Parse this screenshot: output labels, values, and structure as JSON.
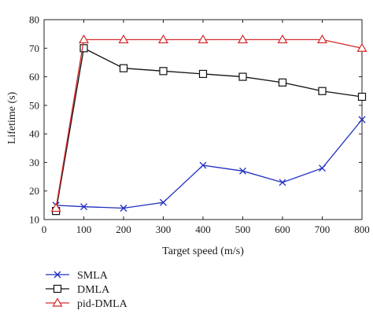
{
  "chart_data": {
    "type": "line",
    "title": "",
    "xlabel": "Target speed (m/s)",
    "ylabel": "Lifetime (s)",
    "xlim": [
      0,
      800
    ],
    "ylim": [
      10,
      80
    ],
    "xticks": [
      "0",
      "100",
      "200",
      "300",
      "400",
      "500",
      "600",
      "700",
      "800"
    ],
    "yticks": [
      "10",
      "20",
      "30",
      "40",
      "50",
      "60",
      "70",
      "80"
    ],
    "grid": false,
    "legend_position": "below plot, left",
    "series": [
      {
        "name": "SMLA",
        "color": "#1f2fbf",
        "marker": "x",
        "x": [
          30,
          100,
          200,
          300,
          400,
          500,
          600,
          700,
          800
        ],
        "y": [
          15,
          14.5,
          14,
          16,
          29,
          27,
          23,
          28,
          45
        ]
      },
      {
        "name": "DMLA",
        "color": "#111111",
        "marker": "square",
        "x": [
          30,
          100,
          200,
          300,
          400,
          500,
          600,
          700,
          800
        ],
        "y": [
          13,
          70,
          63,
          62,
          61,
          60,
          58,
          55,
          53
        ]
      },
      {
        "name": "pid-DMLA",
        "color": "#d42a2a",
        "marker": "triangle",
        "x": [
          30,
          100,
          200,
          300,
          400,
          500,
          600,
          700,
          800
        ],
        "y": [
          14,
          73,
          73,
          73,
          73,
          73,
          73,
          73,
          70
        ]
      }
    ]
  }
}
